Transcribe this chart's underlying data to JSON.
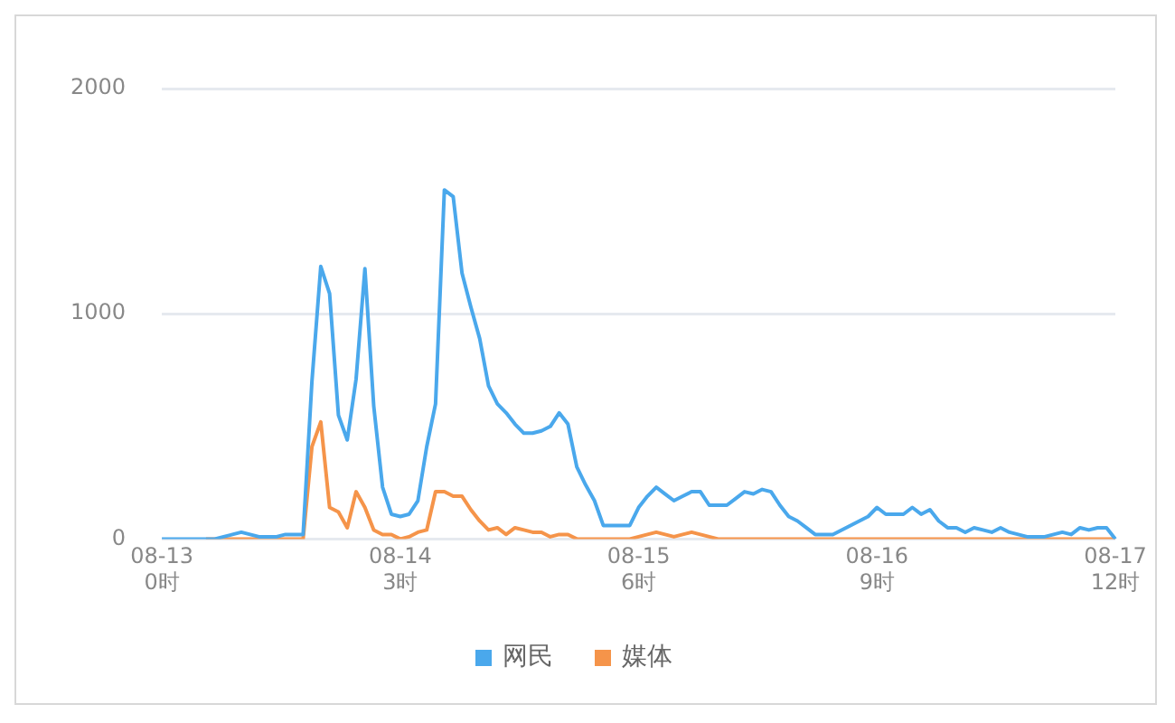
{
  "chart_data": {
    "type": "line",
    "categories": [
      "08-13\n0时",
      null,
      null,
      null,
      null,
      null,
      null,
      null,
      null,
      null,
      null,
      null,
      null,
      null,
      null,
      null,
      null,
      null,
      null,
      null,
      null,
      null,
      null,
      null,
      null,
      null,
      null,
      "08-14\n3时",
      null,
      null,
      null,
      null,
      null,
      null,
      null,
      null,
      null,
      null,
      null,
      null,
      null,
      null,
      null,
      null,
      null,
      null,
      null,
      null,
      null,
      null,
      null,
      null,
      null,
      null,
      "08-15\n6时",
      null,
      null,
      null,
      null,
      null,
      null,
      null,
      null,
      null,
      null,
      null,
      null,
      null,
      null,
      null,
      null,
      null,
      null,
      null,
      null,
      null,
      null,
      null,
      null,
      null,
      null,
      "08-16\n9时",
      null,
      null,
      null,
      null,
      null,
      null,
      null,
      null,
      null,
      null,
      null,
      null,
      null,
      null,
      null,
      null,
      null,
      null,
      null,
      null,
      null,
      null,
      null,
      null,
      null,
      null,
      "08-17\n12时"
    ],
    "series": [
      {
        "name": "网民",
        "color": "#4aa8ec",
        "values": [
          0,
          0,
          0,
          0,
          0,
          0,
          0,
          10,
          20,
          30,
          20,
          10,
          10,
          10,
          20,
          20,
          20,
          700,
          1210,
          1090,
          550,
          440,
          710,
          1200,
          590,
          230,
          110,
          100,
          110,
          170,
          410,
          600,
          1550,
          1520,
          1180,
          1030,
          890,
          680,
          600,
          560,
          510,
          470,
          470,
          480,
          500,
          560,
          510,
          320,
          240,
          170,
          60,
          60,
          60,
          60,
          140,
          190,
          230,
          200,
          170,
          190,
          210,
          210,
          150,
          150,
          150,
          180,
          210,
          200,
          220,
          210,
          150,
          100,
          80,
          50,
          20,
          20,
          20,
          40,
          60,
          80,
          100,
          140,
          110,
          110,
          110,
          140,
          110,
          130,
          80,
          50,
          50,
          30,
          50,
          40,
          30,
          50,
          30,
          20,
          10,
          10,
          10,
          20,
          30,
          20,
          50,
          40,
          50,
          50,
          0
        ]
      },
      {
        "name": "媒体",
        "color": "#f5944a",
        "values": [
          null,
          null,
          null,
          null,
          null,
          0,
          0,
          0,
          0,
          0,
          0,
          0,
          0,
          0,
          0,
          0,
          0,
          410,
          520,
          140,
          120,
          50,
          210,
          140,
          40,
          20,
          20,
          0,
          10,
          30,
          40,
          210,
          210,
          190,
          190,
          130,
          80,
          40,
          50,
          20,
          50,
          40,
          30,
          30,
          10,
          20,
          20,
          0,
          0,
          0,
          0,
          0,
          0,
          0,
          10,
          20,
          30,
          20,
          10,
          20,
          30,
          20,
          10,
          0,
          0,
          0,
          0,
          0,
          0,
          0,
          0,
          0,
          0,
          0,
          0,
          0,
          0,
          0,
          0,
          0,
          0,
          0,
          0,
          0,
          0,
          0,
          0,
          0,
          0,
          0,
          0,
          0,
          0,
          0,
          0,
          0,
          0,
          0,
          0,
          0,
          0,
          0,
          0,
          0,
          0,
          0,
          0,
          0,
          0
        ]
      }
    ],
    "ylim": [
      0,
      2000
    ],
    "yticks": [
      0,
      1000,
      2000
    ],
    "grid": "y",
    "legend": "bottom",
    "marker": "none",
    "line_style": "solid"
  }
}
